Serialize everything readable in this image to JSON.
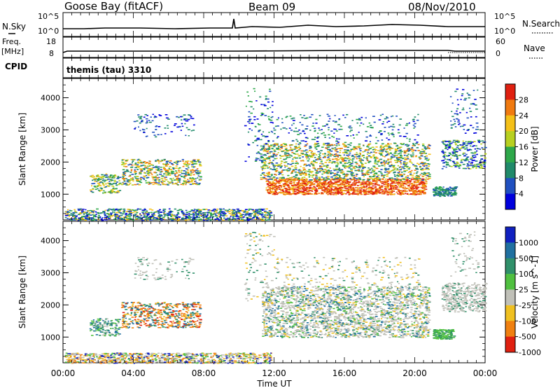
{
  "header": {
    "station": "Goose Bay (fitACF)",
    "beam": "Beam 09",
    "date": "08/Nov/2010"
  },
  "sky_panel": {
    "left_label": "N.Sky",
    "right_label": "N.Search",
    "tick_top": "10^5",
    "tick_bottom": "10^0",
    "right_tick_top": "10^5",
    "right_tick_bottom": "10^0"
  },
  "freq_panel": {
    "left_label_1": "Freq.",
    "left_label_2": "[MHz]",
    "right_label": "Nave",
    "left_ticks": [
      "18",
      "8"
    ],
    "right_ticks": [
      "60",
      "0"
    ]
  },
  "cpid": {
    "label": "CPID",
    "value": "themis (tau) 3310"
  },
  "chart_data": [
    {
      "type": "heatmap",
      "panel": "power",
      "ylabel": "Slant Range [km]",
      "yticks": [
        1000,
        2000,
        3000,
        4000
      ],
      "ylim": [
        200,
        4600
      ],
      "xlim_hours": [
        0,
        24
      ],
      "colorbar": {
        "label": "Power [dB]",
        "ticks": [
          "28",
          "24",
          "20",
          "16",
          "12",
          "8",
          "4"
        ],
        "colors": [
          "#0000dd",
          "#2050c0",
          "#208a6a",
          "#2ea84a",
          "#b8d020",
          "#f4c018",
          "#f07a10",
          "#e02010"
        ]
      }
    },
    {
      "type": "heatmap",
      "panel": "velocity",
      "ylabel": "Slant Range [km]",
      "yticks": [
        1000,
        2000,
        3000,
        4000
      ],
      "ylim": [
        200,
        4600
      ],
      "xlim_hours": [
        0,
        24
      ],
      "colorbar": {
        "label": "Velocity [m s^-1]",
        "ticks": [
          "1000",
          "500",
          "100",
          "25",
          "-25",
          "-100",
          "-500",
          "-1000"
        ],
        "colors": [
          "#1020c0",
          "#2070a0",
          "#30906a",
          "#50c040",
          "#c0c0b8",
          "#f0c020",
          "#f08010",
          "#e02010"
        ]
      }
    }
  ],
  "x_axis": {
    "label": "Time UT",
    "ticks": [
      "00:00",
      "04:00",
      "08:00",
      "12:00",
      "16:00",
      "20:00",
      "00:00"
    ]
  }
}
